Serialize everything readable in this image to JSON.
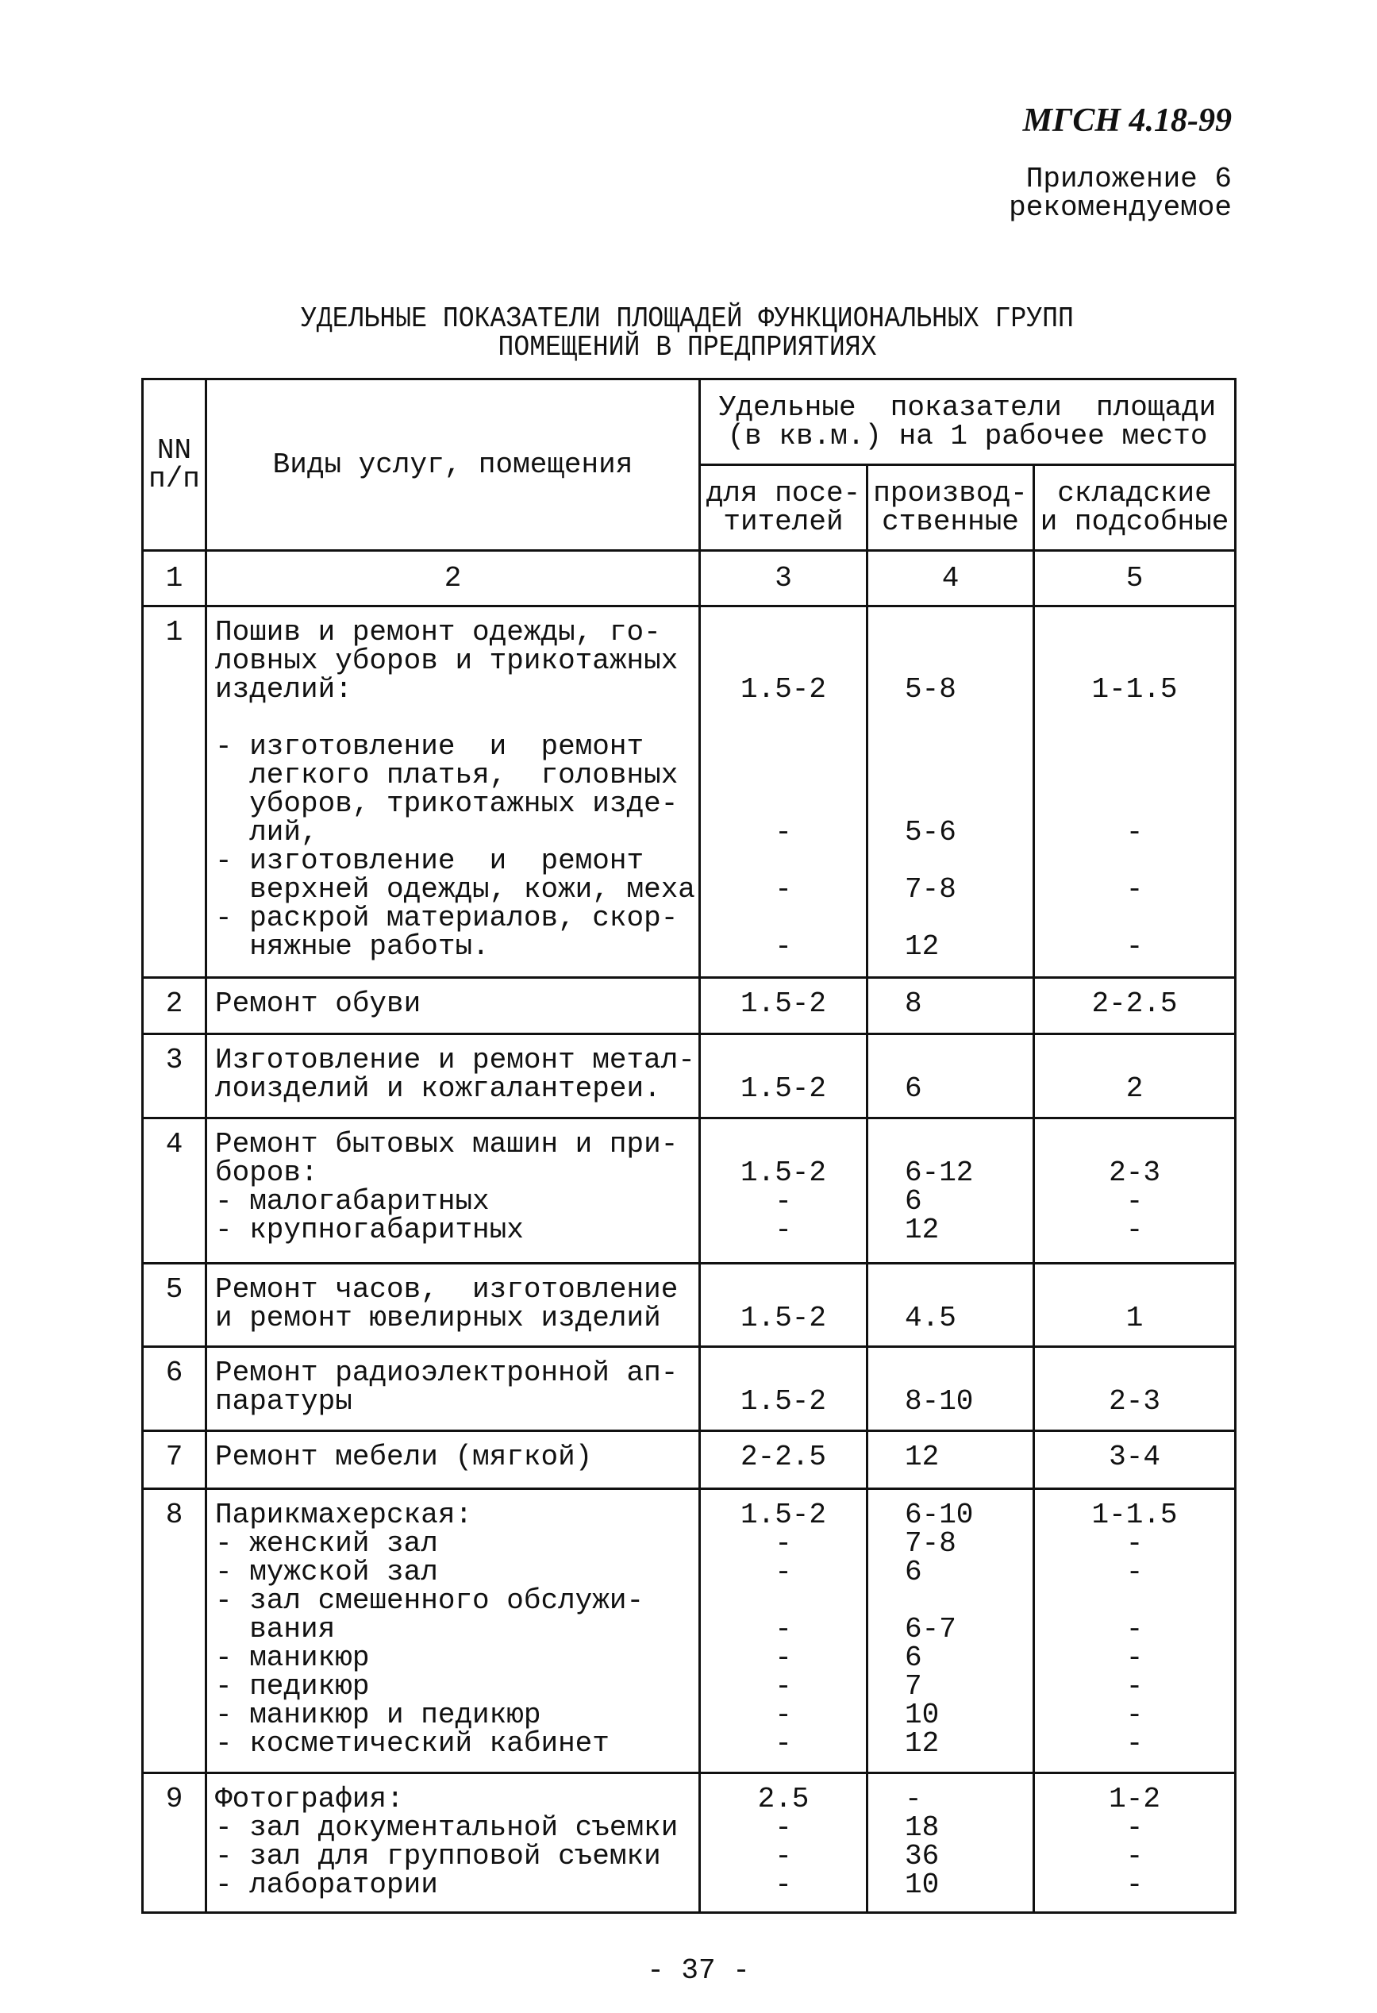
{
  "header": {
    "code": "МГСН 4.18-99",
    "appendix": "Приложение 6\nрекомендуемое"
  },
  "title": "УДЕЛЬНЫЕ ПОКАЗАТЕЛИ ПЛОЩАДЕЙ ФУНКЦИОНАЛЬНЫХ ГРУПП\nПОМЕЩЕНИЙ В ПРЕДПРИЯТИЯХ",
  "table": {
    "headers": {
      "nn": "NN\nп/п",
      "services": "Виды услуг, помещения",
      "group": "Удельные  показатели  площади\n(в кв.м.) на 1 рабочее место",
      "c3": "для посе-\nтителей",
      "c4": "производ-\nственные",
      "c5": "складские\nи подсобные"
    },
    "column_numbers": [
      "1",
      "2",
      "3",
      "4",
      "5"
    ],
    "rows": [
      {
        "nn": "1",
        "service": "Пошив и ремонт одежды, го-\nловных уборов и трикотажных\nизделий:\n\n- изготовление  и  ремонт\n  легкого платья,  головных\n  уборов, трикотажных изде-\n  лий,\n- изготовление  и  ремонт\n  верхней одежды, кожи, меха\n- раскрой материалов, скор-\n  няжные работы.",
        "c3": "\n\n1.5-2\n\n\n\n\n-\n\n-\n\n-",
        "c4": "\n\n5-8\n\n\n\n\n5-6\n\n7-8\n\n12",
        "c5": "\n\n1-1.5\n\n\n\n\n-\n\n-\n\n-"
      },
      {
        "nn": "2",
        "service": "Ремонт обуви",
        "c3": "1.5-2",
        "c4": "8",
        "c5": "2-2.5"
      },
      {
        "nn": "3",
        "service": "Изготовление и ремонт метал-\nлоизделий и кожгалантереи.",
        "c3": "\n1.5-2",
        "c4": "\n6",
        "c5": "\n2"
      },
      {
        "nn": "4",
        "service": "Ремонт бытовых машин и при-\nборов:\n- малогабаритных\n- крупногабаритных",
        "c3": "\n1.5-2\n-\n-",
        "c4": "\n6-12\n6\n12",
        "c5": "\n2-3\n-\n-"
      },
      {
        "nn": "5",
        "service": "Ремонт часов,  изготовление\nи ремонт ювелирных изделий",
        "c3": "\n1.5-2",
        "c4": "\n4.5",
        "c5": "\n1"
      },
      {
        "nn": "6",
        "service": "Ремонт радиоэлектронной ап-\nпаратуры",
        "c3": "\n1.5-2",
        "c4": "\n8-10",
        "c5": "\n2-3"
      },
      {
        "nn": "7",
        "service": "Ремонт мебели (мягкой)",
        "c3": "2-2.5",
        "c4": "12",
        "c5": "3-4"
      },
      {
        "nn": "8",
        "service": "Парикмахерская:\n- женский зал\n- мужской зал\n- зал смешенного обслужи-\n  вания\n- маникюр\n- педикюр\n- маникюр и педикюр\n- косметический кабинет",
        "c3": "1.5-2\n-\n-\n\n-\n-\n-\n-\n-",
        "c4": "6-10\n7-8\n6\n\n6-7\n6\n7\n10\n12",
        "c5": "1-1.5\n-\n-\n\n-\n-\n-\n-\n-"
      },
      {
        "nn": "9",
        "service": "Фотография:\n- зал документальной съемки\n- зал для групповой съемки\n- лаборатории",
        "c3": "2.5\n-\n-\n-",
        "c4": "-\n18\n36\n10",
        "c5": "1-2\n-\n-\n-"
      }
    ]
  },
  "page_number": "- 37 -"
}
